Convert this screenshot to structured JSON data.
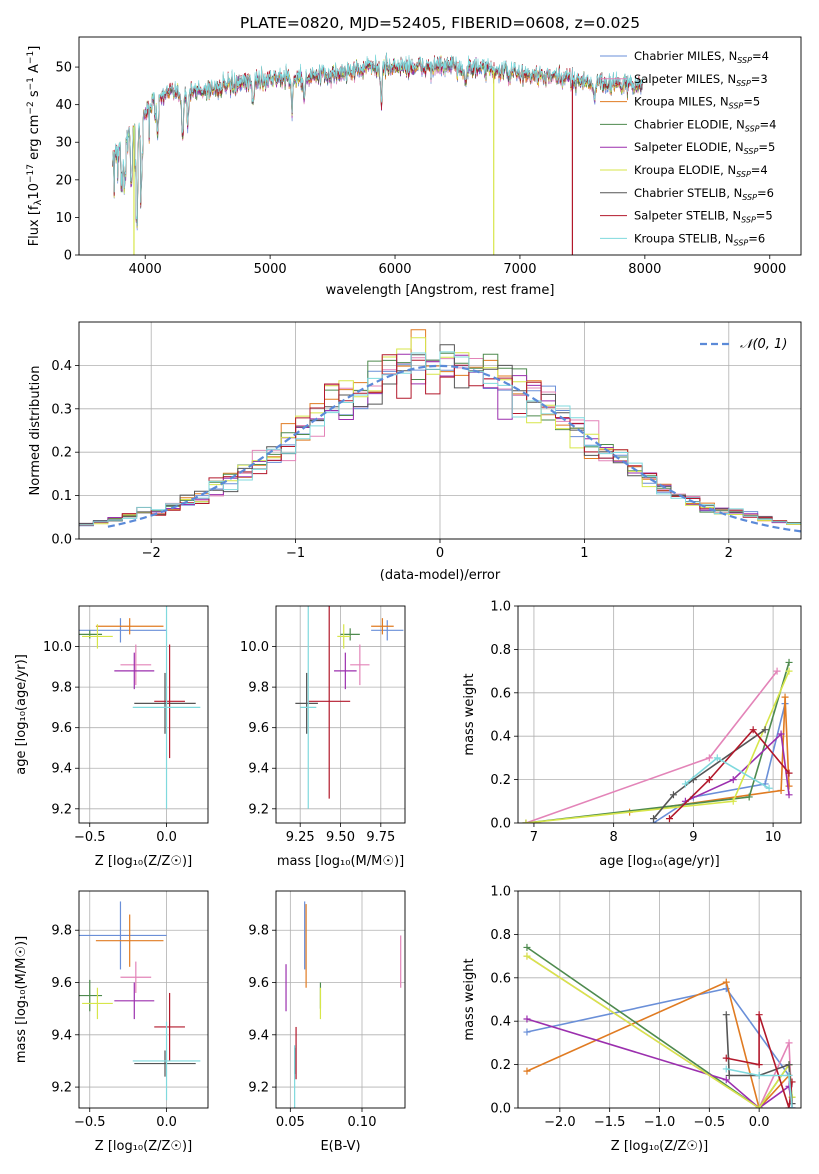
{
  "colors": {
    "chab_miles": "#6a8fd8",
    "salp_miles": "#e384b8",
    "kroupa_miles": "#e07b22",
    "chab_elodie": "#4e8a4e",
    "salp_elodie": "#9b2fae",
    "kroupa_elodie": "#d7e64a",
    "chab_stelib": "#555555",
    "salp_stelib": "#b2182b",
    "kroupa_stelib": "#7fd9dd",
    "gauss": "#5b8ad8",
    "grid": "#b0b0b0"
  },
  "chart_data": [
    {
      "id": "spectrum",
      "type": "line",
      "title": "PLATE=0820, MJD=52405, FIBERID=0608, z=0.025",
      "xlabel": "wavelength [Angstrom, rest frame]",
      "ylabel_parts": [
        "Flux [f",
        "λ",
        "10",
        "−17",
        " erg cm",
        "−2",
        " s",
        "−1",
        " A",
        "−1",
        "]"
      ],
      "xlim": [
        3470,
        9250
      ],
      "ylim": [
        0,
        58
      ],
      "xticks": [
        4000,
        5000,
        6000,
        7000,
        8000,
        9000
      ],
      "yticks": [
        0,
        10,
        20,
        30,
        40,
        50
      ],
      "legend_position": "upper right",
      "x_range_data": [
        3740,
        7980
      ],
      "anchors": [
        [
          3740,
          25
        ],
        [
          3800,
          30
        ],
        [
          3900,
          34
        ],
        [
          4000,
          38
        ],
        [
          4100,
          42
        ],
        [
          4200,
          43
        ],
        [
          4300,
          43
        ],
        [
          4500,
          44
        ],
        [
          4700,
          45
        ],
        [
          5000,
          47
        ],
        [
          5300,
          47
        ],
        [
          5500,
          48
        ],
        [
          5800,
          50
        ],
        [
          6000,
          50
        ],
        [
          6300,
          50
        ],
        [
          6500,
          50
        ],
        [
          6800,
          49
        ],
        [
          7000,
          48
        ],
        [
          7300,
          47
        ],
        [
          7600,
          46
        ],
        [
          7980,
          45
        ]
      ],
      "absorption_features": [
        [
          3810,
          8
        ],
        [
          3835,
          14
        ],
        [
          3890,
          16
        ],
        [
          3934,
          28
        ],
        [
          3969,
          20
        ],
        [
          4101,
          10
        ],
        [
          4300,
          12
        ],
        [
          4340,
          8
        ],
        [
          4861,
          6
        ],
        [
          5175,
          8
        ],
        [
          5270,
          5
        ],
        [
          5890,
          10
        ],
        [
          6563,
          4
        ],
        [
          7600,
          5
        ]
      ],
      "series": [
        {
          "name": "Chabrier MILES",
          "nssp": "4",
          "color_key": "chab_miles"
        },
        {
          "name": "Salpeter MILES",
          "nssp": "3",
          "color_key": "salp_miles"
        },
        {
          "name": "Kroupa MILES",
          "nssp": "5",
          "color_key": "kroupa_miles"
        },
        {
          "name": "Chabrier ELODIE",
          "nssp": "4",
          "color_key": "chab_elodie"
        },
        {
          "name": "Salpeter ELODIE",
          "nssp": "5",
          "color_key": "salp_elodie"
        },
        {
          "name": "Kroupa ELODIE",
          "nssp": "4",
          "color_key": "kroupa_elodie"
        },
        {
          "name": "Chabrier STELIB",
          "nssp": "6",
          "color_key": "chab_stelib"
        },
        {
          "name": "Salpeter STELIB",
          "nssp": "5",
          "color_key": "salp_stelib"
        },
        {
          "name": "Kroupa STELIB",
          "nssp": "6",
          "color_key": "kroupa_stelib"
        }
      ],
      "drops": [
        {
          "x": 3910,
          "color_key": "kroupa_elodie"
        },
        {
          "x": 6790,
          "color_key": "kroupa_elodie"
        },
        {
          "x": 7420,
          "color_key": "salp_stelib"
        }
      ]
    },
    {
      "id": "residuals",
      "type": "histogram",
      "xlabel": "(data-model)/error",
      "ylabel": "Normed distribution",
      "xlim": [
        -2.5,
        2.5
      ],
      "ylim": [
        0,
        0.5
      ],
      "xticks": [
        -2,
        -1,
        0,
        1,
        2
      ],
      "xtick_labels": [
        "−2",
        "−1",
        "0",
        "1",
        "2"
      ],
      "yticks": [
        0.0,
        0.1,
        0.2,
        0.3,
        0.4
      ],
      "ytick_labels": [
        "0.0",
        "0.1",
        "0.2",
        "0.3",
        "0.4"
      ],
      "bin_width": 0.1,
      "legend_position": "upper right",
      "gaussian_label": "𝒩(0, 1)"
    },
    {
      "id": "z_age",
      "type": "scatter",
      "xlabel": "Z [log₁₀(Z/Z☉)]",
      "ylabel": "age  [log₁₀(age/yr)]",
      "xlim": [
        -0.57,
        0.27
      ],
      "ylim": [
        9.13,
        10.2
      ],
      "xticks": [
        -0.5,
        0.0
      ],
      "xtick_labels": [
        "−0.5",
        "0.0"
      ],
      "yticks": [
        9.2,
        9.4,
        9.6,
        9.8,
        10.0
      ],
      "ytick_labels": [
        "9.2",
        "9.4",
        "9.6",
        "9.8",
        "10.0"
      ],
      "points": [
        {
          "x": -0.3,
          "y": 10.08,
          "xerr": 0.3,
          "yerr": 0.06,
          "color_key": "chab_miles"
        },
        {
          "x": -0.2,
          "y": 9.91,
          "xerr": 0.1,
          "yerr": 0.1,
          "color_key": "salp_miles"
        },
        {
          "x": -0.24,
          "y": 10.1,
          "xerr": 0.22,
          "yerr": 0.04,
          "color_key": "kroupa_miles"
        },
        {
          "x": -0.5,
          "y": 10.06,
          "xerr": 0.08,
          "yerr": 0.02,
          "color_key": "chab_elodie"
        },
        {
          "x": -0.21,
          "y": 9.88,
          "xerr": 0.13,
          "yerr": 0.09,
          "color_key": "salp_elodie"
        },
        {
          "x": -0.45,
          "y": 10.05,
          "xerr": 0.1,
          "yerr": 0.06,
          "color_key": "kroupa_elodie"
        },
        {
          "x": -0.01,
          "y": 9.72,
          "xerr": 0.2,
          "yerr": 0.15,
          "color_key": "chab_stelib"
        },
        {
          "x": 0.02,
          "y": 9.73,
          "xerr": 0.1,
          "yerr": 0.28,
          "color_key": "salp_stelib"
        },
        {
          "x": 0.0,
          "y": 9.7,
          "xerr": 0.22,
          "yerr": 0.5,
          "color_key": "kroupa_stelib"
        }
      ]
    },
    {
      "id": "mass_age",
      "type": "scatter",
      "xlabel": "mass [log₁₀(M/M☉)]",
      "ylabel": "",
      "xlim": [
        9.1,
        9.9
      ],
      "ylim": [
        9.13,
        10.2
      ],
      "xticks": [
        9.25,
        9.5,
        9.75
      ],
      "xtick_labels": [
        "9.25",
        "9.50",
        "9.75"
      ],
      "yticks": [
        9.2,
        9.4,
        9.6,
        9.8,
        10.0
      ],
      "ytick_labels": [
        "9.2",
        "9.4",
        "9.6",
        "9.8",
        "10.0"
      ],
      "points": [
        {
          "x": 9.79,
          "y": 10.08,
          "xerr": 0.1,
          "yerr": 0.05,
          "color_key": "chab_miles"
        },
        {
          "x": 9.62,
          "y": 9.91,
          "xerr": 0.06,
          "yerr": 0.1,
          "color_key": "salp_miles"
        },
        {
          "x": 9.76,
          "y": 10.1,
          "xerr": 0.07,
          "yerr": 0.04,
          "color_key": "kroupa_miles"
        },
        {
          "x": 9.56,
          "y": 10.06,
          "xerr": 0.06,
          "yerr": 0.03,
          "color_key": "chab_elodie"
        },
        {
          "x": 9.53,
          "y": 9.88,
          "xerr": 0.07,
          "yerr": 0.09,
          "color_key": "salp_elodie"
        },
        {
          "x": 9.52,
          "y": 10.05,
          "xerr": 0.04,
          "yerr": 0.06,
          "color_key": "kroupa_elodie"
        },
        {
          "x": 9.29,
          "y": 9.72,
          "xerr": 0.07,
          "yerr": 0.15,
          "color_key": "chab_stelib"
        },
        {
          "x": 9.43,
          "y": 9.73,
          "xerr": 0.13,
          "yerr": 0.48,
          "color_key": "salp_stelib"
        },
        {
          "x": 9.3,
          "y": 9.7,
          "xerr": 0.05,
          "yerr": 0.5,
          "color_key": "kroupa_stelib"
        }
      ]
    },
    {
      "id": "age_weight",
      "type": "line",
      "xlabel": "age  [log₁₀(age/yr)]",
      "ylabel": "mass weight",
      "xlim": [
        6.8,
        10.35
      ],
      "ylim": [
        0,
        1.0
      ],
      "xticks": [
        7,
        8,
        9,
        10
      ],
      "xtick_labels": [
        "7",
        "8",
        "9",
        "10"
      ],
      "yticks": [
        0.0,
        0.2,
        0.4,
        0.6,
        0.8,
        1.0
      ],
      "ytick_labels": [
        "0.0",
        "0.2",
        "0.4",
        "0.6",
        "0.8",
        "1.0"
      ],
      "series": [
        {
          "color_key": "chab_miles",
          "x": [
            8.5,
            9.0,
            9.9,
            10.15
          ],
          "y": [
            0.0,
            0.12,
            0.18,
            0.55
          ]
        },
        {
          "color_key": "salp_miles",
          "x": [
            6.9,
            9.2,
            10.05
          ],
          "y": [
            0.0,
            0.3,
            0.7
          ]
        },
        {
          "color_key": "kroupa_miles",
          "x": [
            8.2,
            10.1,
            10.15,
            10.2
          ],
          "y": [
            0.05,
            0.15,
            0.58,
            0.17
          ]
        },
        {
          "color_key": "chab_elodie",
          "x": [
            6.9,
            9.7,
            10.2
          ],
          "y": [
            0.0,
            0.12,
            0.74
          ]
        },
        {
          "color_key": "salp_elodie",
          "x": [
            8.9,
            9.5,
            10.1,
            10.2
          ],
          "y": [
            0.1,
            0.2,
            0.41,
            0.13
          ]
        },
        {
          "color_key": "kroupa_elodie",
          "x": [
            6.9,
            9.5,
            10.2
          ],
          "y": [
            0.0,
            0.1,
            0.7
          ]
        },
        {
          "color_key": "chab_stelib",
          "x": [
            8.5,
            8.75,
            9.0,
            9.9
          ],
          "y": [
            0.02,
            0.13,
            0.2,
            0.43
          ]
        },
        {
          "color_key": "salp_stelib",
          "x": [
            8.7,
            9.2,
            9.75,
            10.2
          ],
          "y": [
            0.02,
            0.2,
            0.43,
            0.23
          ]
        },
        {
          "color_key": "kroupa_stelib",
          "x": [
            8.9,
            9.3,
            9.95
          ],
          "y": [
            0.18,
            0.3,
            0.16
          ]
        }
      ]
    },
    {
      "id": "z_mass",
      "type": "scatter",
      "xlabel": "Z [log₁₀(Z/Z☉)]",
      "ylabel": "mass [log₁₀(M/M☉)]",
      "xlim": [
        -0.57,
        0.27
      ],
      "ylim": [
        9.12,
        9.95
      ],
      "xticks": [
        -0.5,
        0.0
      ],
      "xtick_labels": [
        "−0.5",
        "0.0"
      ],
      "yticks": [
        9.2,
        9.4,
        9.6,
        9.8
      ],
      "ytick_labels": [
        "9.2",
        "9.4",
        "9.6",
        "9.8"
      ],
      "points": [
        {
          "x": -0.3,
          "y": 9.78,
          "xerr": 0.3,
          "yerr": 0.13,
          "color_key": "chab_miles"
        },
        {
          "x": -0.2,
          "y": 9.62,
          "xerr": 0.1,
          "yerr": 0.06,
          "color_key": "salp_miles"
        },
        {
          "x": -0.24,
          "y": 9.76,
          "xerr": 0.22,
          "yerr": 0.1,
          "color_key": "kroupa_miles"
        },
        {
          "x": -0.5,
          "y": 9.55,
          "xerr": 0.08,
          "yerr": 0.06,
          "color_key": "chab_elodie"
        },
        {
          "x": -0.21,
          "y": 9.53,
          "xerr": 0.13,
          "yerr": 0.07,
          "color_key": "salp_elodie"
        },
        {
          "x": -0.45,
          "y": 9.52,
          "xerr": 0.1,
          "yerr": 0.06,
          "color_key": "kroupa_elodie"
        },
        {
          "x": -0.01,
          "y": 9.29,
          "xerr": 0.2,
          "yerr": 0.05,
          "color_key": "chab_stelib"
        },
        {
          "x": 0.02,
          "y": 9.43,
          "xerr": 0.1,
          "yerr": 0.13,
          "color_key": "salp_stelib"
        },
        {
          "x": 0.0,
          "y": 9.3,
          "xerr": 0.22,
          "yerr": 0.15,
          "color_key": "kroupa_stelib"
        }
      ]
    },
    {
      "id": "ebv_mass",
      "type": "scatter",
      "xlabel": "E(B-V)",
      "ylabel": "",
      "xlim": [
        0.04,
        0.13
      ],
      "ylim": [
        9.12,
        9.95
      ],
      "xticks": [
        0.05,
        0.1
      ],
      "xtick_labels": [
        "0.05",
        "0.10"
      ],
      "yticks": [
        9.2,
        9.4,
        9.6,
        9.8
      ],
      "ytick_labels": [
        "9.2",
        "9.4",
        "9.6",
        "9.8"
      ],
      "points": [
        {
          "x": 0.06,
          "y": 9.78,
          "yerr": 0.13,
          "color_key": "chab_miles"
        },
        {
          "x": 0.127,
          "y": 9.68,
          "yerr": 0.1,
          "color_key": "salp_miles"
        },
        {
          "x": 0.061,
          "y": 9.74,
          "yerr": 0.16,
          "color_key": "kroupa_miles"
        },
        {
          "x": 0.071,
          "y": 9.55,
          "yerr": 0.05,
          "color_key": "chab_elodie"
        },
        {
          "x": 0.047,
          "y": 9.58,
          "yerr": 0.09,
          "color_key": "salp_elodie"
        },
        {
          "x": 0.071,
          "y": 9.52,
          "yerr": 0.06,
          "color_key": "kroupa_elodie"
        },
        {
          "x": 0.053,
          "y": 9.3,
          "yerr": 0.05,
          "color_key": "chab_stelib"
        },
        {
          "x": 0.054,
          "y": 9.33,
          "yerr": 0.1,
          "color_key": "salp_stelib"
        },
        {
          "x": 0.053,
          "y": 9.24,
          "yerr": 0.12,
          "color_key": "kroupa_stelib"
        }
      ]
    },
    {
      "id": "z_weight",
      "type": "line",
      "xlabel": "Z [log₁₀(Z/Z☉)]",
      "ylabel": "mass weight",
      "xlim": [
        -2.42,
        0.42
      ],
      "ylim": [
        0,
        1.0
      ],
      "xticks": [
        -2.0,
        -1.5,
        -1.0,
        -0.5,
        0.0
      ],
      "xtick_labels": [
        "−2.0",
        "−1.5",
        "−1.0",
        "−0.5",
        "0.0"
      ],
      "yticks": [
        0.0,
        0.2,
        0.4,
        0.6,
        0.8,
        1.0
      ],
      "ytick_labels": [
        "0.0",
        "0.2",
        "0.4",
        "0.6",
        "0.8",
        "1.0"
      ],
      "series": [
        {
          "color_key": "chab_miles",
          "x": [
            -2.33,
            -0.33,
            0.3,
            0.33
          ],
          "y": [
            0.35,
            0.55,
            0.15,
            0.0
          ]
        },
        {
          "color_key": "salp_miles",
          "x": [
            -2.33,
            0.0,
            0.3,
            0.33
          ],
          "y": [
            0.7,
            0.0,
            0.3,
            0.0
          ]
        },
        {
          "color_key": "kroupa_miles",
          "x": [
            -2.33,
            -0.33,
            0.0,
            0.3
          ],
          "y": [
            0.17,
            0.58,
            0.0,
            0.15
          ]
        },
        {
          "color_key": "chab_elodie",
          "x": [
            -2.33,
            0.0,
            0.3,
            0.33
          ],
          "y": [
            0.74,
            0.0,
            0.2,
            0.05
          ]
        },
        {
          "color_key": "salp_elodie",
          "x": [
            -2.33,
            -0.33,
            0.0,
            0.3,
            0.33
          ],
          "y": [
            0.41,
            0.13,
            0.0,
            0.1,
            0.0
          ]
        },
        {
          "color_key": "kroupa_elodie",
          "x": [
            -2.33,
            0.0,
            0.3,
            0.33
          ],
          "y": [
            0.7,
            0.0,
            0.2,
            0.05
          ]
        },
        {
          "color_key": "chab_stelib",
          "x": [
            -0.33,
            -0.3,
            0.0,
            0.3,
            0.33
          ],
          "y": [
            0.43,
            0.15,
            0.15,
            0.2,
            0.02
          ]
        },
        {
          "color_key": "salp_stelib",
          "x": [
            -0.33,
            0.0,
            0.0,
            0.3,
            0.33
          ],
          "y": [
            0.23,
            0.2,
            0.43,
            0.0,
            0.12
          ]
        },
        {
          "color_key": "kroupa_stelib",
          "x": [
            -0.33,
            0.0,
            0.3,
            0.33
          ],
          "y": [
            0.18,
            0.15,
            0.15,
            0.0
          ]
        }
      ]
    }
  ]
}
